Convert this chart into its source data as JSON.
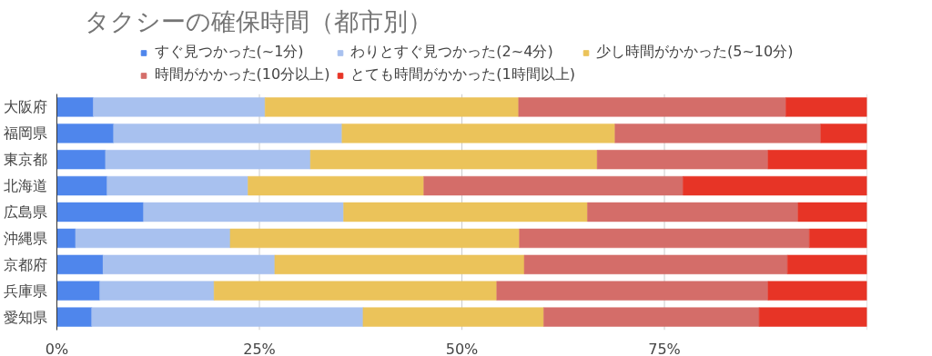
{
  "chart_data": {
    "type": "bar",
    "orientation": "horizontal",
    "stacked": true,
    "title": "タクシーの確保時間（都市別）",
    "categories": [
      "大阪府",
      "福岡県",
      "東京都",
      "北海道",
      "広島県",
      "沖縄県",
      "京都府",
      "兵庫県",
      "愛知県"
    ],
    "series": [
      {
        "name": "すぐ見つかった(~1分)",
        "color": "#4f86ec",
        "values": [
          4.5,
          7.0,
          6.0,
          6.2,
          10.7,
          2.3,
          5.7,
          5.3,
          4.3
        ]
      },
      {
        "name": "わりとすぐ見つかった(2~4分)",
        "color": "#a8c1ef",
        "values": [
          21.2,
          28.2,
          25.3,
          17.4,
          24.7,
          19.1,
          21.2,
          14.1,
          33.5
        ]
      },
      {
        "name": "少し時間がかかった(5~10分)",
        "color": "#ebc35a",
        "values": [
          31.3,
          33.7,
          35.4,
          21.7,
          30.1,
          35.7,
          30.8,
          34.9,
          22.3
        ]
      },
      {
        "name": "時間がかかった(10分以上)",
        "color": "#d46d69",
        "values": [
          33.0,
          25.4,
          21.1,
          32.0,
          26.0,
          35.8,
          32.5,
          33.5,
          26.6
        ]
      },
      {
        "name": "とても時間がかかった(1時間以上)",
        "color": "#e73426",
        "values": [
          10.0,
          5.7,
          12.2,
          22.7,
          8.5,
          7.1,
          9.8,
          12.2,
          13.3
        ]
      }
    ],
    "xlim": [
      0,
      100
    ],
    "xticks": [
      {
        "value": 0,
        "label": "0%"
      },
      {
        "value": 25,
        "label": "25%"
      },
      {
        "value": 50,
        "label": "50%"
      },
      {
        "value": 75,
        "label": "75%"
      },
      {
        "value": 100,
        "label": null
      }
    ],
    "grid": "x",
    "legend": "top"
  }
}
